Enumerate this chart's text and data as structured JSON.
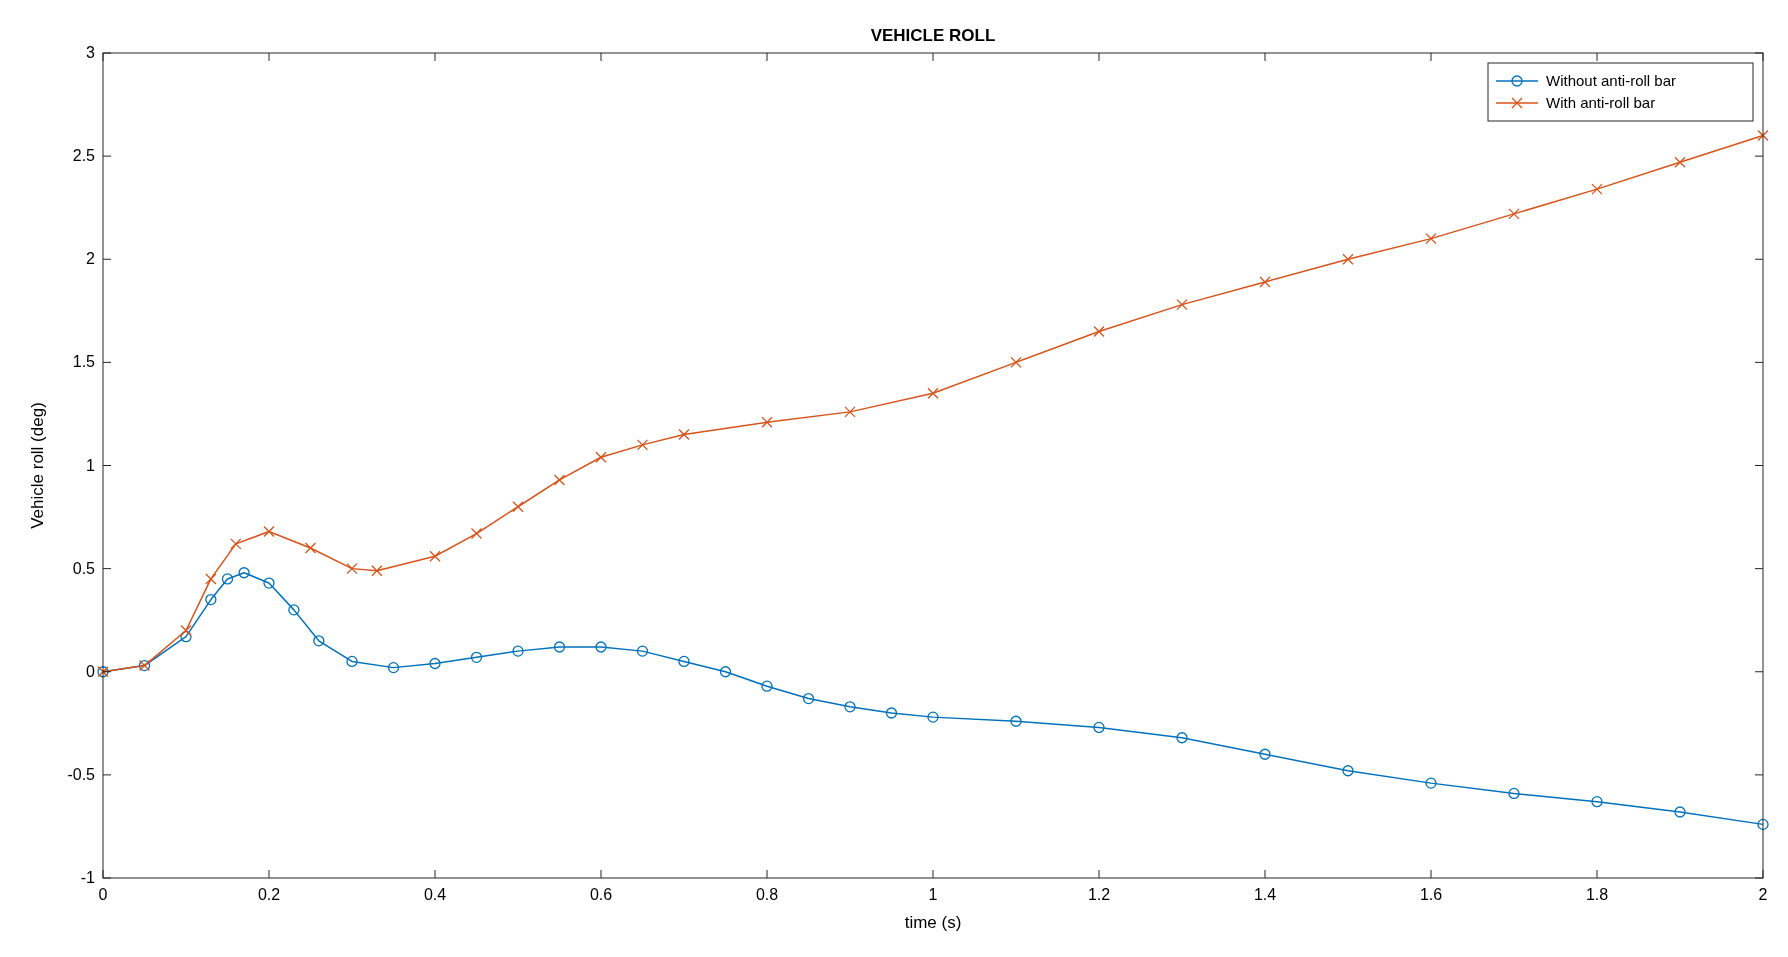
{
  "chart_data": {
    "type": "line",
    "title": "VEHICLE ROLL",
    "xlabel": "time (s)",
    "ylabel": "Vehicle roll (deg)",
    "xlim": [
      0,
      2
    ],
    "xticks": [
      0,
      0.2,
      0.4,
      0.6,
      0.8,
      1,
      1.2,
      1.4,
      1.6,
      1.8,
      2
    ],
    "ylim": [
      -1,
      3
    ],
    "yticks": [
      -1,
      -0.5,
      0,
      0.5,
      1,
      1.5,
      2,
      2.5,
      3
    ],
    "grid": false,
    "legend": "top right",
    "line_style": "solid",
    "series": [
      {
        "name": "Without anti-roll bar",
        "color": "#0072bd",
        "marker": "circle",
        "x": [
          0,
          0.05,
          0.1,
          0.13,
          0.15,
          0.17,
          0.2,
          0.23,
          0.26,
          0.3,
          0.35,
          0.4,
          0.45,
          0.5,
          0.55,
          0.6,
          0.65,
          0.7,
          0.75,
          0.8,
          0.85,
          0.9,
          0.95,
          1,
          1.1,
          1.2,
          1.3,
          1.4,
          1.5,
          1.6,
          1.7,
          1.8,
          1.9,
          2
        ],
        "values": [
          0,
          0.03,
          0.17,
          0.35,
          0.45,
          0.48,
          0.43,
          0.3,
          0.15,
          0.05,
          0.02,
          0.04,
          0.07,
          0.1,
          0.12,
          0.12,
          0.1,
          0.05,
          0,
          -0.07,
          -0.13,
          -0.17,
          -0.2,
          -0.22,
          -0.24,
          -0.27,
          -0.32,
          -0.4,
          -0.48,
          -0.54,
          -0.59,
          -0.63,
          -0.68,
          -0.74
        ]
      },
      {
        "name": "With anti-roll bar",
        "color": "#d95319",
        "marker": "cross",
        "x": [
          0,
          0.05,
          0.1,
          0.13,
          0.16,
          0.2,
          0.25,
          0.3,
          0.33,
          0.4,
          0.45,
          0.5,
          0.55,
          0.6,
          0.65,
          0.7,
          0.8,
          0.9,
          1,
          1.1,
          1.2,
          1.3,
          1.4,
          1.5,
          1.6,
          1.7,
          1.8,
          1.9,
          2
        ],
        "values": [
          0,
          0.03,
          0.2,
          0.45,
          0.62,
          0.68,
          0.6,
          0.5,
          0.49,
          0.56,
          0.67,
          0.8,
          0.93,
          1.04,
          1.1,
          1.15,
          1.21,
          1.26,
          1.35,
          1.5,
          1.65,
          1.78,
          1.89,
          2,
          2.1,
          2.22,
          2.34,
          2.47,
          2.6
        ]
      }
    ]
  }
}
